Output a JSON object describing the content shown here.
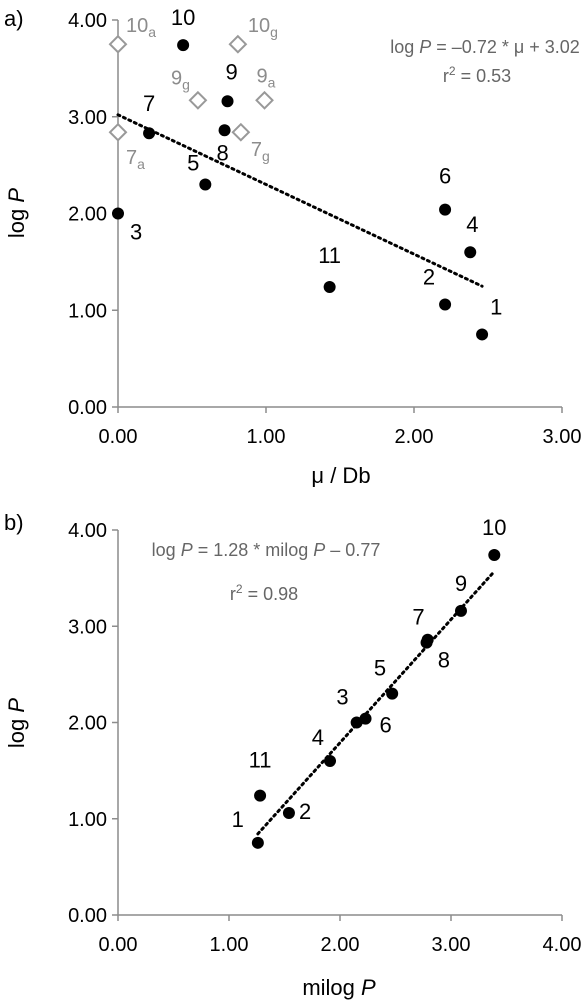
{
  "chart_data": [
    {
      "panel_label": "a)",
      "type": "scatter",
      "xlabel": "μ / Db",
      "ylabel_main": "log ",
      "ylabel_italic": "P",
      "xlim": [
        0,
        3
      ],
      "ylim": [
        0,
        4
      ],
      "xticks": [
        "0.00",
        "1.00",
        "2.00",
        "3.00"
      ],
      "yticks": [
        "0.00",
        "1.00",
        "2.00",
        "3.00",
        "4.00"
      ],
      "equation": {
        "line1_pre": "log ",
        "line1_italic": "P",
        "line1_post": " = –0.72 * μ + 3.02",
        "line2_pre": "r",
        "line2_sup": "2",
        "line2_post": " = 0.53"
      },
      "series": [
        {
          "marker": "filled-circle",
          "points": [
            {
              "label": "1",
              "x": 2.46,
              "y": 0.75
            },
            {
              "label": "2",
              "x": 2.21,
              "y": 1.06
            },
            {
              "label": "3",
              "x": 0.0,
              "y": 2.0
            },
            {
              "label": "4",
              "x": 2.38,
              "y": 1.6
            },
            {
              "label": "5",
              "x": 0.59,
              "y": 2.3
            },
            {
              "label": "6",
              "x": 2.21,
              "y": 2.04
            },
            {
              "label": "7",
              "x": 0.21,
              "y": 2.83
            },
            {
              "label": "8",
              "x": 0.72,
              "y": 2.86
            },
            {
              "label": "9",
              "x": 0.74,
              "y": 3.16
            },
            {
              "label": "10",
              "x": 0.44,
              "y": 3.74
            },
            {
              "label": "11",
              "x": 1.43,
              "y": 1.24
            }
          ]
        },
        {
          "marker": "open-diamond",
          "points": [
            {
              "label": "10",
              "sub": "a",
              "x": 0.0,
              "y": 3.75
            },
            {
              "label": "10",
              "sub": "g",
              "x": 0.81,
              "y": 3.75
            },
            {
              "label": "9",
              "sub": "g",
              "x": 0.54,
              "y": 3.17
            },
            {
              "label": "9",
              "sub": "a",
              "x": 0.99,
              "y": 3.17
            },
            {
              "label": "7",
              "sub": "a",
              "x": 0.0,
              "y": 2.84
            },
            {
              "label": "7",
              "sub": "g",
              "x": 0.83,
              "y": 2.84
            }
          ]
        }
      ],
      "trendline": {
        "slope": -0.72,
        "intercept": 3.02,
        "x_range": [
          0.0,
          2.46
        ]
      },
      "colors": {
        "marker": "#000000",
        "diamond": "#999999",
        "diamond_label": "#8c8c8c",
        "equation": "#666666",
        "axis": "#8c8c8c"
      }
    },
    {
      "panel_label": "b)",
      "type": "scatter",
      "xlabel_main": "milog ",
      "xlabel_italic": "P",
      "ylabel_main": "log ",
      "ylabel_italic": "P",
      "xlim": [
        0,
        4
      ],
      "ylim": [
        0,
        4
      ],
      "xticks": [
        "0.00",
        "1.00",
        "2.00",
        "3.00",
        "4.00"
      ],
      "yticks": [
        "0.00",
        "1.00",
        "2.00",
        "3.00",
        "4.00"
      ],
      "equation": {
        "line1_pre": "log ",
        "line1_italic": "P",
        "line1_post": " = 1.28 * milog ",
        "line1_italic2": "P",
        "line1_post2": " – 0.77",
        "line2_pre": "r",
        "line2_sup": "2",
        "line2_post": " = 0.98"
      },
      "series": [
        {
          "marker": "filled-circle",
          "points": [
            {
              "label": "1",
              "x": 1.26,
              "y": 0.75
            },
            {
              "label": "2",
              "x": 1.54,
              "y": 1.06
            },
            {
              "label": "3",
              "x": 2.15,
              "y": 2.0
            },
            {
              "label": "4",
              "x": 1.91,
              "y": 1.6
            },
            {
              "label": "5",
              "x": 2.47,
              "y": 2.3
            },
            {
              "label": "6",
              "x": 2.23,
              "y": 2.04
            },
            {
              "label": "7",
              "x": 2.78,
              "y": 2.83
            },
            {
              "label": "8",
              "x": 2.79,
              "y": 2.86
            },
            {
              "label": "9",
              "x": 3.09,
              "y": 3.16
            },
            {
              "label": "10",
              "x": 3.39,
              "y": 3.74
            },
            {
              "label": "11",
              "x": 1.28,
              "y": 1.24
            }
          ]
        }
      ],
      "trendline": {
        "slope": 1.28,
        "intercept": -0.77,
        "x_range": [
          1.26,
          3.39
        ]
      },
      "colors": {
        "marker": "#000000",
        "equation": "#666666",
        "axis": "#8c8c8c"
      }
    }
  ]
}
